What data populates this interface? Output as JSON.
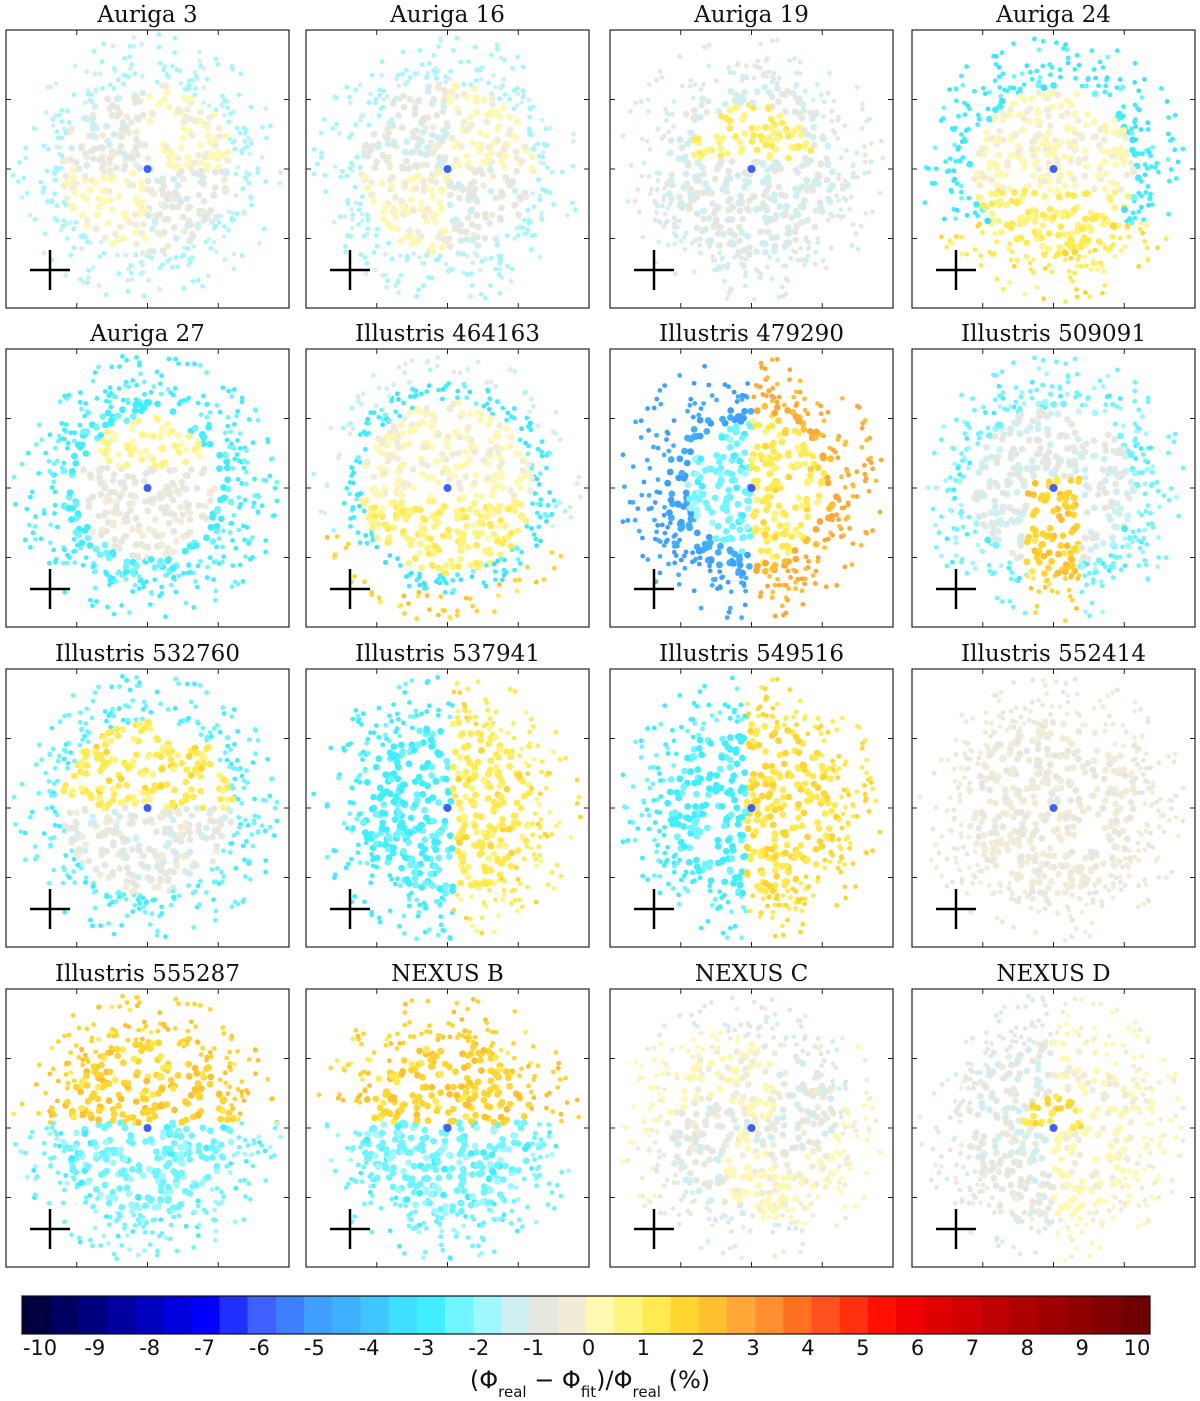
{
  "chart_data": {
    "type": "scatter",
    "panels": [
      {
        "title": "Auriga 3",
        "pattern": "ring-soft"
      },
      {
        "title": "Auriga 16",
        "pattern": "ring-soft"
      },
      {
        "title": "Auriga 19",
        "pattern": "dipole-yellow-top"
      },
      {
        "title": "Auriga 24",
        "pattern": "ring-blue-yellow-bottom"
      },
      {
        "title": "Auriga 27",
        "pattern": "ring-blue"
      },
      {
        "title": "Illustris 464163",
        "pattern": "big-ring"
      },
      {
        "title": "Illustris 479290",
        "pattern": "lopsided"
      },
      {
        "title": "Illustris 509091",
        "pattern": "dipole-vertical"
      },
      {
        "title": "Illustris 532760",
        "pattern": "ring-dipole"
      },
      {
        "title": "Illustris 537941",
        "pattern": "dipole-right"
      },
      {
        "title": "Illustris 549516",
        "pattern": "clumpy"
      },
      {
        "title": "Illustris 552414",
        "pattern": "faint"
      },
      {
        "title": "Illustris 555287",
        "pattern": "dipole-top"
      },
      {
        "title": "NEXUS B",
        "pattern": "dipole-top"
      },
      {
        "title": "NEXUS C",
        "pattern": "spiral"
      },
      {
        "title": "NEXUS D",
        "pattern": "faint-center"
      }
    ],
    "colorbar": {
      "min": -10,
      "max": 10,
      "ticks": [
        -10,
        -9,
        -8,
        -7,
        -6,
        -5,
        -4,
        -3,
        -2,
        -1,
        0,
        1,
        2,
        3,
        4,
        5,
        6,
        7,
        8,
        9,
        10
      ],
      "boundaries": [
        -10.5,
        -10,
        -9.5,
        -9,
        -8.5,
        -8,
        -7.5,
        -7,
        -6.5,
        -6,
        -5.5,
        -5,
        -4.5,
        -4,
        -3.5,
        -3,
        -2.5,
        -2,
        -1.5,
        -1,
        -0.5,
        0,
        0.5,
        1,
        1.5,
        2,
        2.5,
        3,
        3.5,
        4,
        4.5,
        5,
        5.5,
        6,
        6.5,
        7,
        7.5,
        8,
        8.5,
        9,
        9.5,
        10,
        10.5
      ],
      "label_main": "(Φ",
      "label_sub1": "real",
      "label_mid": " − Φ",
      "label_sub2": "fit",
      "label_mid2": ")/Φ",
      "label_sub3": "real",
      "label_end": " (%)"
    },
    "colors": {
      "neg": [
        "#000040",
        "#00005f",
        "#00007f",
        "#00009f",
        "#0000bf",
        "#0000df",
        "#0000ff",
        "#1f2fff",
        "#3f5fff",
        "#3f7fff",
        "#3f9fff",
        "#3fafff",
        "#3fc5ff",
        "#3fdfff",
        "#3fefff",
        "#6ff5ff",
        "#a0f8ff",
        "#cfeff0",
        "#e6e8e0"
      ],
      "pos": [
        "#f0ecd8",
        "#fff8b0",
        "#fff480",
        "#ffea50",
        "#ffd630",
        "#ffc030",
        "#ffa838",
        "#ff9030",
        "#ff7020",
        "#ff5020",
        "#ff3010",
        "#ff1000",
        "#f00000",
        "#df0000",
        "#cf0000",
        "#bf0000",
        "#af0000",
        "#9f0000",
        "#8f0000",
        "#7f0000",
        "#6f0000"
      ]
    }
  }
}
